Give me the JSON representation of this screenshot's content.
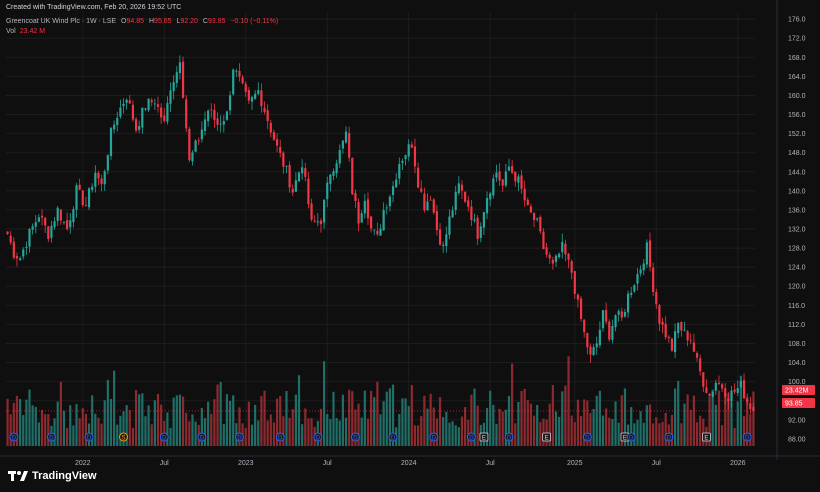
{
  "header": {
    "created": "Created with TradingView.com, Feb 20, 2026 19:52 UTC"
  },
  "legend": {
    "symbol": "Greencoat UK Wind Plc · 1W · LSE",
    "o_label": "O",
    "o_value": "94.85",
    "h_label": "H",
    "h_value": "95.65",
    "l_label": "L",
    "l_value": "92.20",
    "c_label": "C",
    "c_value": "93.85",
    "change": "−0.10 (−0.11%)",
    "vol_label": "Vol",
    "vol_value": "23.42 M"
  },
  "colors": {
    "up": "#26a69a",
    "down": "#f23645",
    "up_vol": "#1f6f68",
    "down_vol": "#8c2a30",
    "bg": "#0f0f0f",
    "grid": "#1d1d1d"
  },
  "chart_data": {
    "type": "candlestick",
    "interval": "1W",
    "y_ticks": [
      "176.0",
      "172.0",
      "168.0",
      "164.0",
      "160.0",
      "156.0",
      "152.0",
      "148.0",
      "144.0",
      "140.0",
      "136.0",
      "132.0",
      "128.0",
      "124.0",
      "120.0",
      "116.0",
      "112.0",
      "108.0",
      "104.0",
      "100.0",
      "96.0",
      "92.00",
      "88.00"
    ],
    "ylim": [
      86.5,
      177.5
    ],
    "x_ticks": [
      {
        "label": "2022",
        "week": 24
      },
      {
        "label": "Jul",
        "week": 50
      },
      {
        "label": "2023",
        "week": 76
      },
      {
        "label": "Jul",
        "week": 102
      },
      {
        "label": "2024",
        "week": 128
      },
      {
        "label": "Jul",
        "week": 154
      },
      {
        "label": "2025",
        "week": 181
      },
      {
        "label": "Jul",
        "week": 207
      },
      {
        "label": "2026",
        "week": 233
      }
    ],
    "price_anchors": [
      [
        0,
        131
      ],
      [
        2,
        127
      ],
      [
        4,
        126
      ],
      [
        7,
        131
      ],
      [
        10,
        135
      ],
      [
        13,
        131
      ],
      [
        16,
        136
      ],
      [
        19,
        132
      ],
      [
        22,
        140
      ],
      [
        25,
        137
      ],
      [
        28,
        144
      ],
      [
        30,
        141
      ],
      [
        33,
        152
      ],
      [
        35,
        156
      ],
      [
        38,
        160
      ],
      [
        41,
        153
      ],
      [
        44,
        158
      ],
      [
        47,
        159
      ],
      [
        50,
        154
      ],
      [
        52,
        162
      ],
      [
        54,
        165
      ],
      [
        55,
        168
      ],
      [
        58,
        146
      ],
      [
        61,
        151
      ],
      [
        64,
        157
      ],
      [
        67,
        154
      ],
      [
        70,
        156
      ],
      [
        72,
        166
      ],
      [
        74,
        163
      ],
      [
        77,
        158
      ],
      [
        80,
        161
      ],
      [
        83,
        155
      ],
      [
        86,
        149
      ],
      [
        89,
        144
      ],
      [
        91,
        140
      ],
      [
        94,
        146
      ],
      [
        97,
        133
      ],
      [
        100,
        134
      ],
      [
        103,
        144
      ],
      [
        106,
        148
      ],
      [
        108,
        152
      ],
      [
        110,
        140
      ],
      [
        112,
        134
      ],
      [
        114,
        139
      ],
      [
        116,
        132
      ],
      [
        118,
        130
      ],
      [
        120,
        136
      ],
      [
        123,
        141
      ],
      [
        125,
        146
      ],
      [
        127,
        148
      ],
      [
        129,
        150
      ],
      [
        131,
        142
      ],
      [
        133,
        137
      ],
      [
        135,
        139
      ],
      [
        137,
        132
      ],
      [
        139,
        128
      ],
      [
        141,
        134
      ],
      [
        144,
        141
      ],
      [
        147,
        137
      ],
      [
        150,
        131
      ],
      [
        153,
        139
      ],
      [
        156,
        144
      ],
      [
        158,
        141
      ],
      [
        160,
        145
      ],
      [
        163,
        142
      ],
      [
        166,
        136
      ],
      [
        169,
        133
      ],
      [
        171,
        128
      ],
      [
        174,
        124
      ],
      [
        177,
        128
      ],
      [
        180,
        123
      ],
      [
        182,
        116
      ],
      [
        184,
        110
      ],
      [
        186,
        105
      ],
      [
        188,
        108
      ],
      [
        190,
        114
      ],
      [
        192,
        110
      ],
      [
        194,
        114
      ],
      [
        196,
        113
      ],
      [
        198,
        118
      ],
      [
        200,
        121
      ],
      [
        202,
        124
      ],
      [
        204,
        128
      ],
      [
        206,
        120
      ],
      [
        208,
        113
      ],
      [
        210,
        110
      ],
      [
        212,
        107
      ],
      [
        214,
        112
      ],
      [
        216,
        110
      ],
      [
        218,
        109
      ],
      [
        220,
        104
      ],
      [
        222,
        100
      ],
      [
        224,
        97
      ],
      [
        226,
        100
      ],
      [
        228,
        99
      ],
      [
        230,
        97
      ],
      [
        232,
        98
      ],
      [
        234,
        99
      ],
      [
        236,
        96
      ],
      [
        238,
        94
      ]
    ],
    "last_week": 238,
    "events": [
      {
        "week": 2,
        "label": "D",
        "kind": "dividend"
      },
      {
        "week": 14,
        "label": "D",
        "kind": "dividend"
      },
      {
        "week": 26,
        "label": "D",
        "kind": "dividend"
      },
      {
        "week": 37,
        "label": "S",
        "kind": "split"
      },
      {
        "week": 50,
        "label": "D",
        "kind": "dividend"
      },
      {
        "week": 62,
        "label": "D",
        "kind": "dividend"
      },
      {
        "week": 74,
        "label": "D",
        "kind": "dividend"
      },
      {
        "week": 87,
        "label": "D",
        "kind": "dividend"
      },
      {
        "week": 99,
        "label": "D",
        "kind": "dividend"
      },
      {
        "week": 111,
        "label": "D",
        "kind": "dividend"
      },
      {
        "week": 123,
        "label": "D",
        "kind": "dividend"
      },
      {
        "week": 136,
        "label": "D",
        "kind": "dividend"
      },
      {
        "week": 152,
        "label": "E",
        "kind": "earnings"
      },
      {
        "week": 148,
        "label": "D",
        "kind": "dividend"
      },
      {
        "week": 172,
        "label": "E",
        "kind": "earnings"
      },
      {
        "week": 160,
        "label": "D",
        "kind": "dividend"
      },
      {
        "week": 185,
        "label": "D",
        "kind": "dividend"
      },
      {
        "week": 197,
        "label": "E",
        "kind": "earnings"
      },
      {
        "week": 199,
        "label": "D",
        "kind": "dividend"
      },
      {
        "week": 211,
        "label": "D",
        "kind": "dividend"
      },
      {
        "week": 223,
        "label": "E",
        "kind": "earnings"
      },
      {
        "week": 236,
        "label": "D",
        "kind": "dividend"
      }
    ],
    "last_volume_label": "23.42M",
    "last_close_label": "93.85",
    "last_close": 93.85
  },
  "footer": {
    "brand": "TradingView"
  }
}
